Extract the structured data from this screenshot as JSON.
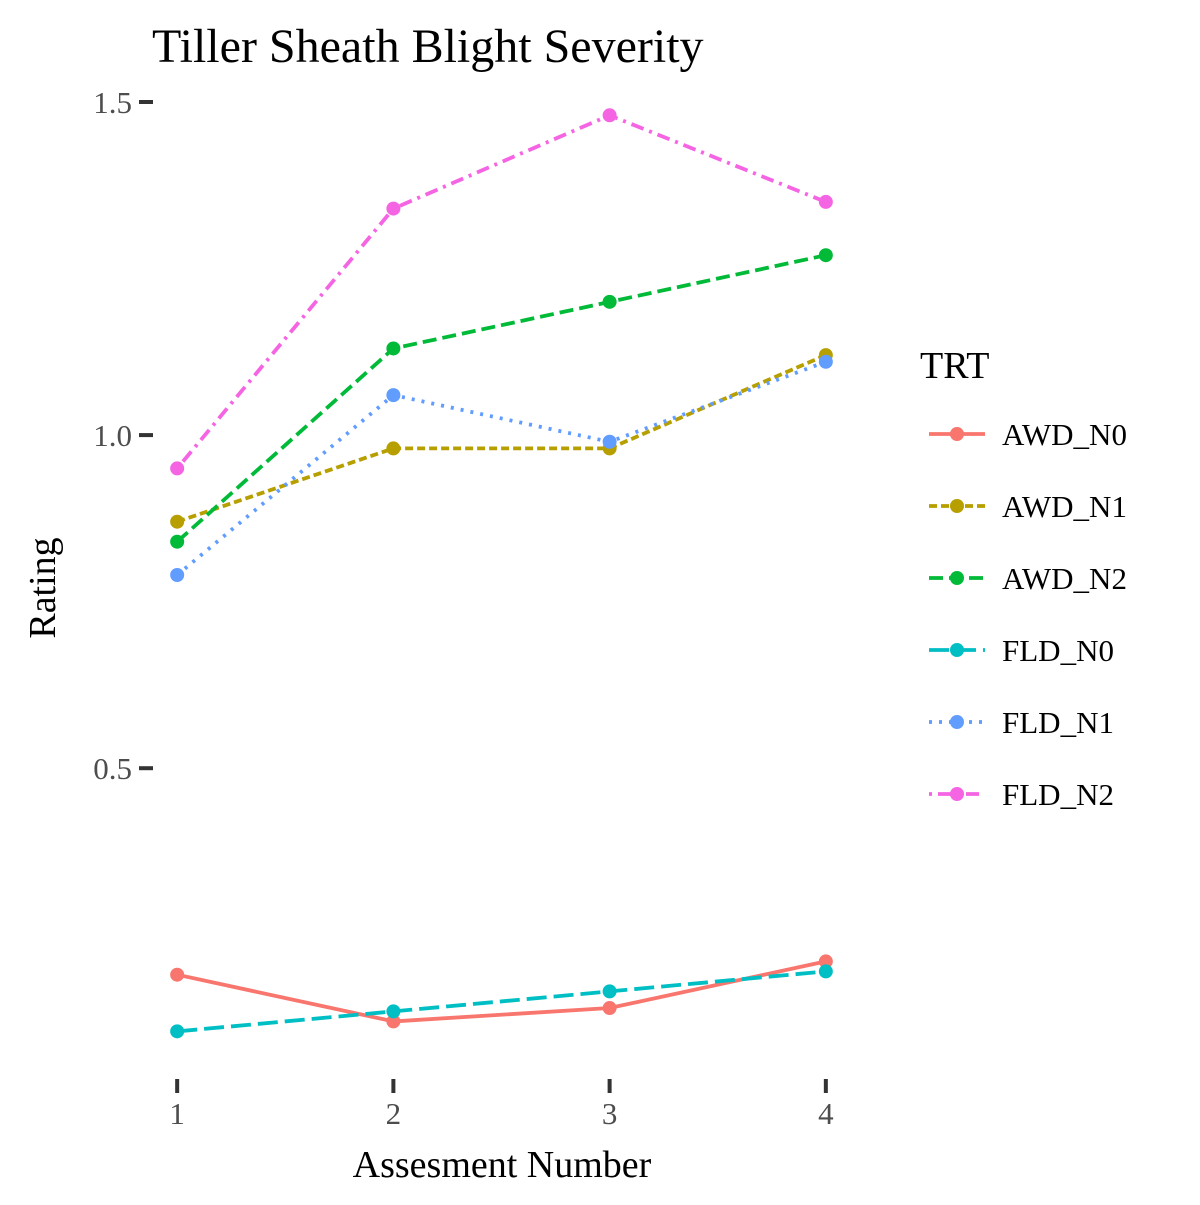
{
  "chart_data": {
    "type": "line",
    "title": "Tiller Sheath Blight Severity",
    "xlabel": "Assesment Number",
    "ylabel": "Rating",
    "x": [
      1,
      2,
      3,
      4
    ],
    "x_tick_labels": [
      "1",
      "2",
      "3",
      "4"
    ],
    "y_ticks": [
      0.5,
      1.0,
      1.5
    ],
    "y_tick_labels": [
      "0.5",
      "1.0",
      "1.5"
    ],
    "xlim": [
      0.99,
      4.01
    ],
    "ylim": [
      0.05,
      1.53
    ],
    "grid": false,
    "legend": {
      "title": "TRT",
      "position": "right"
    },
    "series": [
      {
        "name": "AWD_N0",
        "values": [
          0.19,
          0.12,
          0.14,
          0.21
        ],
        "color": "#F8766D",
        "linetype": "solid"
      },
      {
        "name": "AWD_N1",
        "values": [
          0.87,
          0.98,
          0.98,
          1.12
        ],
        "color": "#B79F00",
        "linetype": "dashed-short"
      },
      {
        "name": "AWD_N2",
        "values": [
          0.84,
          1.13,
          1.2,
          1.27
        ],
        "color": "#00BA38",
        "linetype": "dashed"
      },
      {
        "name": "FLD_N0",
        "values": [
          0.105,
          0.135,
          0.165,
          0.195
        ],
        "color": "#00BFC4",
        "linetype": "longdash"
      },
      {
        "name": "FLD_N1",
        "values": [
          0.79,
          1.06,
          0.99,
          1.11
        ],
        "color": "#619CFF",
        "linetype": "dotted"
      },
      {
        "name": "FLD_N2",
        "values": [
          0.95,
          1.34,
          1.48,
          1.35
        ],
        "color": "#F564E3",
        "linetype": "dotdash"
      }
    ]
  }
}
